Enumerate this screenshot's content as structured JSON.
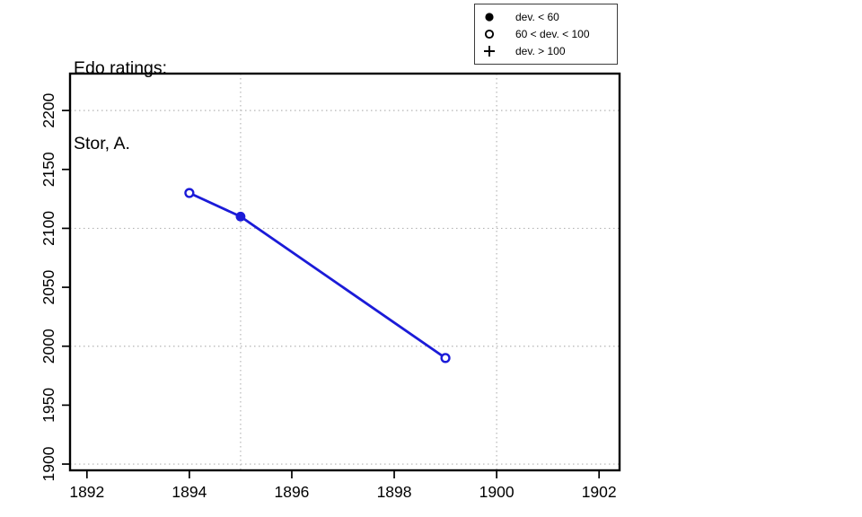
{
  "title": {
    "line1": "Edo ratings:",
    "line2": "Stor, A."
  },
  "legend": {
    "items": [
      {
        "symbol": "filled-circle",
        "label": "dev. < 60"
      },
      {
        "symbol": "open-circle",
        "label": "60 < dev. < 100"
      },
      {
        "symbol": "plus",
        "label": "dev. > 100"
      }
    ]
  },
  "colors": {
    "series": "#1b1bd8",
    "grid": "#b5b5b5",
    "axis": "#000000",
    "background": "#ffffff",
    "legend_border": "#3c3c3c"
  },
  "chart_data": {
    "type": "line",
    "title": "Edo ratings: Stor, A.",
    "series_name": "Edo rating",
    "x": [
      1894,
      1895,
      1899
    ],
    "y": [
      2130,
      2110,
      1990
    ],
    "point_markers": [
      "open-circle",
      "filled-circle",
      "open-circle"
    ],
    "xlabel": "",
    "ylabel": "",
    "xlim": [
      1891.67,
      1902.4
    ],
    "ylim": [
      1894.7,
      2231.3
    ],
    "x_ticks": [
      1892,
      1894,
      1896,
      1898,
      1900,
      1902
    ],
    "y_ticks": [
      1900,
      1950,
      2000,
      2050,
      2100,
      2150,
      2200
    ],
    "x_gridlines": [
      1895,
      1900
    ],
    "y_gridlines": [
      1900,
      2000,
      2100,
      2200
    ],
    "grid": "dotted",
    "legend_position": "top-right"
  }
}
